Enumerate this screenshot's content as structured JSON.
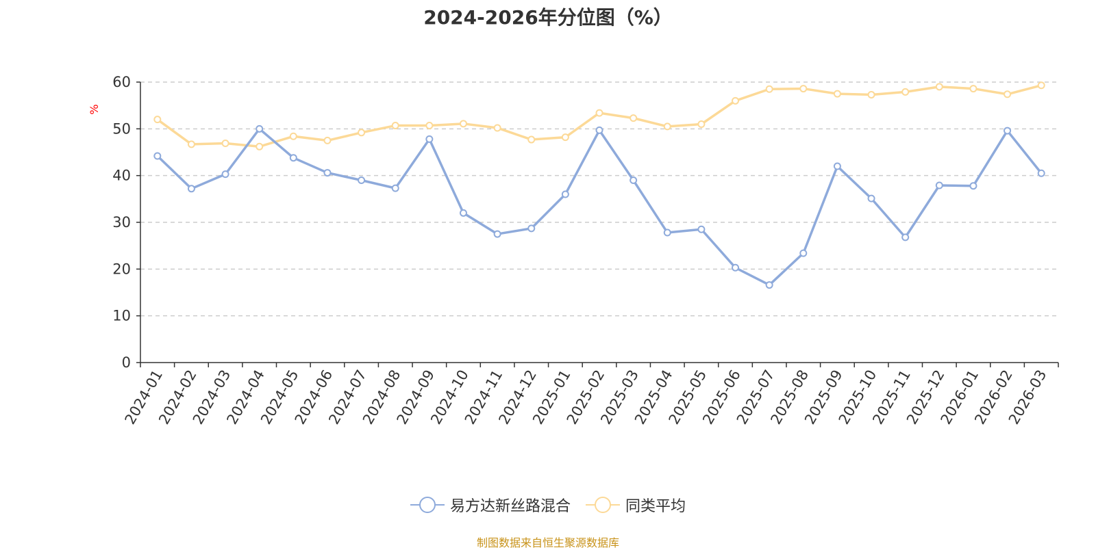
{
  "chart_data": {
    "type": "line",
    "title": "2024-2026年分位图（%）",
    "ylabel": "%",
    "xlabel": "",
    "ylim": [
      0,
      60
    ],
    "yticks": [
      0,
      10,
      20,
      30,
      40,
      50,
      60
    ],
    "grid": true,
    "legend_position": "bottom",
    "categories": [
      "2024-01",
      "2024-02",
      "2024-03",
      "2024-04",
      "2024-05",
      "2024-06",
      "2024-07",
      "2024-08",
      "2024-09",
      "2024-10",
      "2024-11",
      "2024-12",
      "2025-01",
      "2025-02",
      "2025-03",
      "2025-04",
      "2025-05",
      "2025-06",
      "2025-07",
      "2025-08",
      "2025-09",
      "2025-10",
      "2025-11",
      "2025-12",
      "2026-01",
      "2026-02",
      "2026-03"
    ],
    "series": [
      {
        "name": "易方达新丝路混合",
        "color": "#8eaadb",
        "values": [
          44.2,
          37.2,
          40.3,
          50.0,
          43.8,
          40.6,
          39.0,
          37.3,
          47.8,
          32.0,
          27.5,
          28.7,
          36.0,
          49.7,
          39.0,
          27.8,
          28.5,
          20.3,
          16.6,
          23.4,
          42.0,
          35.1,
          26.8,
          37.9,
          37.8,
          49.6,
          40.5
        ]
      },
      {
        "name": "同类平均",
        "color": "#fcd997",
        "values": [
          52.0,
          46.7,
          46.9,
          46.2,
          48.4,
          47.5,
          49.2,
          50.7,
          50.7,
          51.1,
          50.2,
          47.7,
          48.2,
          53.4,
          52.3,
          50.5,
          51.0,
          56.0,
          58.5,
          58.6,
          57.5,
          57.3,
          57.9,
          59.0,
          58.6,
          57.4,
          59.3
        ]
      }
    ]
  },
  "colors": {
    "axis": "#333333",
    "grid": "#cccccc",
    "ylabel": "#ff0000",
    "source": "#c8931a"
  },
  "source_text": "制图数据来自恒生聚源数据库"
}
